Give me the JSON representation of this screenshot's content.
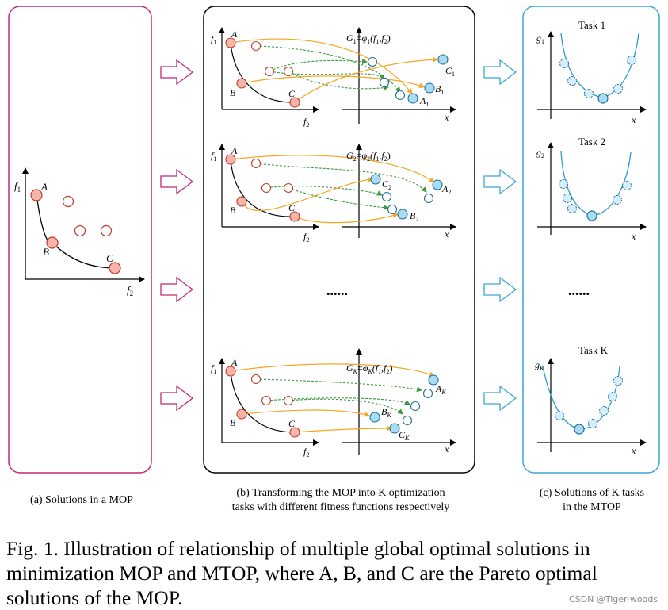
{
  "panel_a": {
    "caption": "(a) Solutions in a MOP",
    "axis_y": "f",
    "axis_y_sub": "1",
    "axis_x": "f",
    "axis_x_sub": "2",
    "points": [
      "A",
      "B",
      "C"
    ]
  },
  "panel_b": {
    "caption_line1": "(b) Transforming the MOP into K optimization",
    "caption_line2": "tasks with different fitness functions respectively",
    "ellipsis": "......",
    "rows": [
      {
        "G": "G",
        "G_sub": "1",
        "phi_sub": "1",
        "targets": [
          {
            "name": "C",
            "sub": "1"
          },
          {
            "name": "B",
            "sub": "1"
          },
          {
            "name": "A",
            "sub": "1"
          }
        ]
      },
      {
        "G": "G",
        "G_sub": "2",
        "phi_sub": "2",
        "targets": [
          {
            "name": "C",
            "sub": "2"
          },
          {
            "name": "A",
            "sub": "2"
          },
          {
            "name": "B",
            "sub": "2"
          }
        ]
      },
      {
        "G": "G",
        "G_sub": "K",
        "phi_sub": "K",
        "targets": [
          {
            "name": "A",
            "sub": "K"
          },
          {
            "name": "B",
            "sub": "K"
          },
          {
            "name": "C",
            "sub": "K"
          }
        ]
      }
    ],
    "phi_symbol": "φ",
    "args": "(f",
    "args_sub1": "1",
    "args_mid": ",f",
    "args_sub2": "2",
    "args_end": ")",
    "x_label": "x",
    "f1": "f",
    "f1_sub": "1",
    "f2": "f",
    "f2_sub": "2"
  },
  "panel_c": {
    "caption_line1": "(c) Solutions of K tasks",
    "caption_line2": "in the MTOP",
    "ellipsis": "......",
    "tasks": [
      {
        "title": "Task 1",
        "y": "g",
        "y_sub": "1"
      },
      {
        "title": "Task 2",
        "y": "g",
        "y_sub": "2"
      },
      {
        "title": "Task K",
        "y": "g",
        "y_sub": "K"
      }
    ],
    "x_label": "x"
  },
  "figure_caption": "Fig. 1. Illustration of relationship of multiple global optimal solutions in minimization MOP and MTOP, where A, B, and C are the Pareto optimal solutions of the MOP.",
  "watermark": "CSDN @Tiger-woods",
  "colors": {
    "panel_a_border": "#c0287a",
    "panel_b_border": "#000000",
    "panel_c_border": "#3aa6d6",
    "arrow_outline_pink": "#c0287a",
    "arrow_outline_blue": "#3aa6d6",
    "pareto_fill": "#f7b5a8",
    "pareto_stroke": "#c0392b",
    "task_point_fill": "#a9dcf2",
    "task_point_stroke": "#1e6f9c",
    "orange_arrow": "#f5a623",
    "green_arrow": "#3c9a3c"
  }
}
